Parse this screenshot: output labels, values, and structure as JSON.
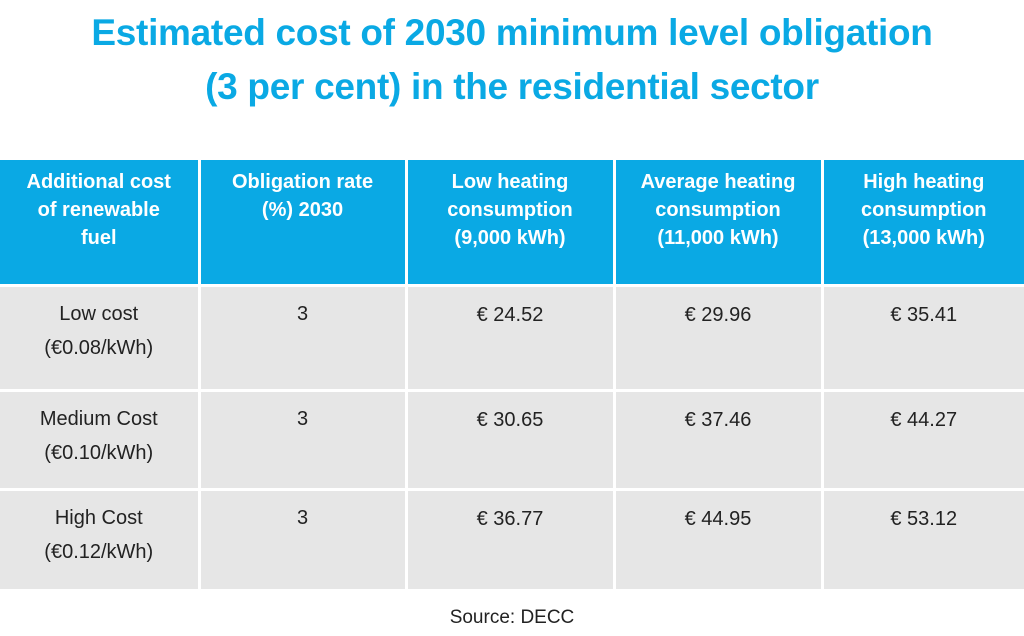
{
  "title": {
    "line1": "Estimated cost of 2030 minimum level obligation",
    "line2": "(3 per cent) in the residential sector"
  },
  "table": {
    "headers": [
      "Additional cost\nof renewable\nfuel",
      "Obligation rate\n(%) 2030",
      "Low heating\nconsumption\n(9,000 kWh)",
      "Average heating\nconsumption\n(11,000 kWh)",
      "High heating\nconsumption\n(13,000 kWh)"
    ],
    "rows": [
      [
        "Low cost\n(€0.08/kWh)",
        "3",
        "€ 24.52",
        "€ 29.96",
        "€ 35.41"
      ],
      [
        "Medium Cost\n(€0.10/kWh)",
        "3",
        "€ 30.65",
        "€ 37.46",
        "€ 44.27"
      ],
      [
        "High Cost\n(€0.12/kWh)",
        "3",
        "€ 36.77",
        "€ 44.95",
        "€ 53.12"
      ]
    ]
  },
  "source": "Source: DECC",
  "colors": {
    "accent": "#0aa9e4",
    "cell_background": "#e6e6e6",
    "text": "#222222"
  }
}
